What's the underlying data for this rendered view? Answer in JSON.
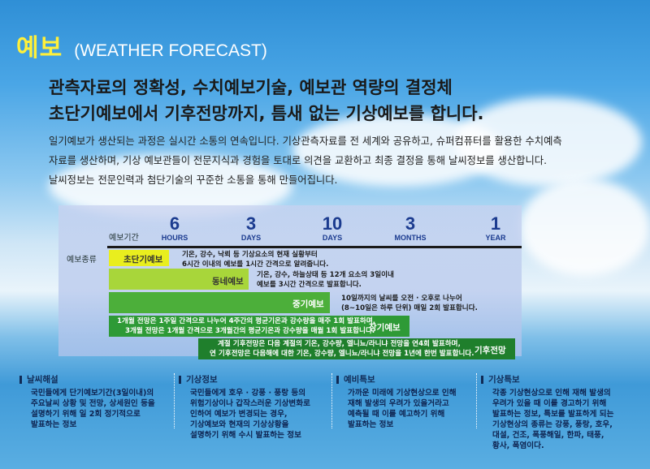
{
  "header": {
    "title_ko": "예보",
    "title_en": "(WEATHER FORECAST)"
  },
  "headline": {
    "line1": "관측자료의 정확성, 수치예보기술, 예보관 역량의 결정체",
    "line2": "초단기예보에서 기후전망까지, 틈새 없는 기상예보를 합니다."
  },
  "intro": {
    "p1": "일기예보가 생산되는 과정은 실시간 소통의 연속입니다. 기상관측자료를 전 세계와 공유하고, 슈퍼컴퓨터를 활용한 수치예측",
    "p2": "자료를 생산하며, 기상 예보관들이 전문지식과 경험을 토대로 의견을 교환하고 최종 결정을 통해 날씨정보를 생산합니다.",
    "p3": "날씨정보는 전문인력과  첨단기술의 꾸준한 소통을 통해 만들어집니다."
  },
  "diagram": {
    "period_label": "예보기간",
    "type_label": "예보종류",
    "ticks": [
      {
        "n": "6",
        "u": "HOURS"
      },
      {
        "n": "3",
        "u": "DAYS"
      },
      {
        "n": "10",
        "u": "DAYS"
      },
      {
        "n": "3",
        "u": "MONTHS"
      },
      {
        "n": "1",
        "u": "YEAR"
      }
    ],
    "bands": [
      {
        "label": "초단기예보",
        "desc1": "기온, 강수, 낙뢰 등 기상요소의 현재 실황부터",
        "desc2": "6시간 이내의 예보를 1시간 간격으로 알려줍니다.",
        "color": "#e9ee1e"
      },
      {
        "label": "동네예보",
        "desc1": "기온, 강수, 하늘상태 등 12개 요소의 3일이내",
        "desc2": "예보를 3시간 간격으로 발표합니다.",
        "color": "#a8d63a"
      },
      {
        "label": "중기예보",
        "desc1": "10일까지의 날씨를 오전 · 오후로 나누어",
        "desc2": "(8~10일은 하루 단위) 매일 2회 발표합니다.",
        "color": "#4caf3a"
      },
      {
        "label": "장기예보",
        "desc1": "1개월 전망은 1주일 간격으로 나누어 4주간의 평균기온과 강수량을 매주 1회 발표하며,",
        "desc2": "3개월 전망은 1개월 간격으로 3개월간의 평균기온과 강수량을 매월 1회 발표합니다.",
        "color": "#2e9a36"
      },
      {
        "label": "기후전망",
        "desc1": "계절 기후전망은 다음 계절의 기온, 강수량, 엘니뇨/라니냐 전망을 연4회 발표하며,",
        "desc2": "연 기후전망은 다음해에 대한 기온, 강수량, 엘니뇨/라니냐 전망을 1년에 한번 발표합니다.",
        "color": "#1f7f2c"
      }
    ]
  },
  "categories": [
    {
      "title": "날씨해설",
      "desc": [
        "국민들에게 단기예보기간(3일이내)의",
        "주요날씨 상황 및 전망, 상세원인 등을",
        "설명하기 위해 일 2회 정기적으로",
        "발표하는 정보"
      ]
    },
    {
      "title": "기상정보",
      "desc": [
        "국민들에게 호우 · 강풍 · 풍랑 등의",
        "위험기상이나 갑작스러운 기상변화로",
        "인하여 예보가 변경되는 경우,",
        "기상예보와 현재의 기상상황을",
        "설명하기 위해 수시 발표하는 정보"
      ]
    },
    {
      "title": "예비특보",
      "desc": [
        "가까운 미래에 기상현상으로 인해",
        "재해 발생의 우려가 있을거라고",
        "예측될 때 이를 예고하기 위해",
        "발표하는 정보"
      ]
    },
    {
      "title": "기상특보",
      "desc": [
        "각종 기상현상으로 인해 재해 발생의",
        "우려가 있을 때 이를 경고하기 위해",
        "발표하는 정보, 특보를 발표하게 되는",
        "기상현상의 종류는 강풍, 풍랑, 호우,",
        "대설, 건조, 폭풍해일, 한파, 태풍,",
        "황사, 폭염이다."
      ]
    }
  ]
}
